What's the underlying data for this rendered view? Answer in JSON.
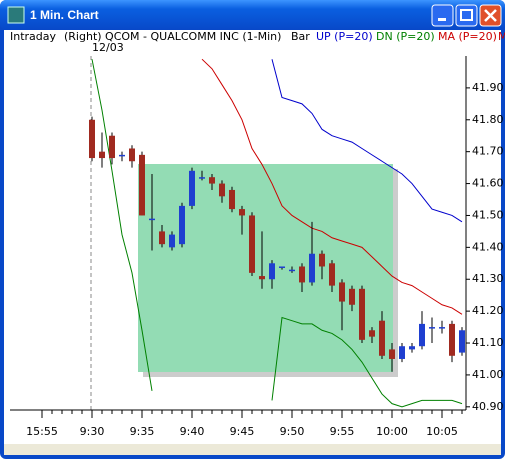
{
  "window": {
    "title": "1 Min. Chart"
  },
  "header": {
    "mode": "Intraday",
    "symbol": "(Right) QCOM - QUALCOMM INC (1-Min)",
    "style": "Bar",
    "more": "M"
  },
  "chart_data": {
    "type": "candlestick",
    "day_label": "12/03",
    "categories": [
      "15:55",
      null,
      null,
      null,
      null,
      "9:30",
      null,
      null,
      null,
      null,
      "9:35",
      null,
      null,
      null,
      null,
      "9:40",
      null,
      null,
      null,
      null,
      "9:45",
      null,
      null,
      null,
      null,
      "9:50",
      null,
      null,
      null,
      null,
      "9:55",
      null,
      null,
      null,
      null,
      "10:00",
      null,
      null,
      null,
      null,
      "10:05",
      null,
      null
    ],
    "open": [
      null,
      null,
      null,
      null,
      null,
      41.8,
      41.7,
      41.75,
      41.69,
      41.71,
      41.69,
      41.49,
      41.45,
      41.4,
      41.41,
      41.53,
      41.62,
      41.62,
      41.6,
      41.58,
      41.52,
      41.5,
      41.31,
      41.3,
      41.34,
      41.33,
      41.34,
      41.29,
      41.38,
      41.35,
      41.29,
      41.27,
      41.27,
      41.14,
      41.17,
      41.08,
      41.05,
      41.08,
      41.09,
      41.15,
      41.15,
      41.16,
      41.07
    ],
    "high": [
      null,
      null,
      null,
      null,
      null,
      41.81,
      41.76,
      41.76,
      41.7,
      41.72,
      41.7,
      41.63,
      41.47,
      41.45,
      41.54,
      41.65,
      41.64,
      41.63,
      41.61,
      41.59,
      41.53,
      41.51,
      41.45,
      41.36,
      41.34,
      41.34,
      41.35,
      41.48,
      41.39,
      41.36,
      41.3,
      41.28,
      41.28,
      41.15,
      41.2,
      41.1,
      41.1,
      41.1,
      41.2,
      41.18,
      41.17,
      41.17,
      41.15
    ],
    "low": [
      null,
      null,
      null,
      null,
      null,
      41.67,
      41.65,
      41.66,
      41.67,
      41.65,
      41.5,
      41.39,
      41.4,
      41.39,
      41.4,
      41.52,
      41.61,
      41.58,
      41.54,
      41.51,
      41.44,
      41.31,
      41.27,
      41.27,
      41.33,
      41.32,
      41.26,
      41.28,
      41.3,
      41.26,
      41.14,
      41.2,
      41.1,
      41.1,
      41.05,
      41.01,
      41.04,
      41.07,
      41.08,
      41.1,
      41.13,
      41.04,
      41.06
    ],
    "close": [
      null,
      null,
      null,
      null,
      null,
      41.68,
      41.68,
      41.68,
      41.69,
      41.67,
      41.5,
      41.49,
      41.41,
      41.44,
      41.53,
      41.64,
      41.62,
      41.6,
      41.56,
      41.52,
      41.5,
      41.32,
      41.3,
      41.35,
      41.34,
      41.33,
      41.29,
      41.38,
      41.34,
      41.28,
      41.23,
      41.22,
      41.11,
      41.12,
      41.06,
      41.05,
      41.09,
      41.09,
      41.16,
      41.15,
      41.15,
      41.06,
      41.14
    ],
    "up_color": "#1f3fd0",
    "down_color": "#a02a20",
    "series": [
      {
        "name": "UP (P=20)",
        "color": "#0000cc",
        "values": [
          null,
          null,
          null,
          null,
          null,
          null,
          null,
          null,
          null,
          null,
          null,
          null,
          null,
          null,
          null,
          null,
          null,
          null,
          null,
          null,
          null,
          null,
          null,
          41.99,
          41.87,
          41.86,
          41.85,
          41.82,
          41.77,
          41.75,
          41.74,
          41.73,
          41.71,
          41.69,
          41.67,
          41.65,
          41.63,
          41.6,
          41.56,
          41.52,
          41.51,
          41.5,
          41.48
        ]
      },
      {
        "name": "DN (P=20)",
        "color": "#008000",
        "values": [
          null,
          null,
          null,
          null,
          null,
          41.99,
          41.83,
          41.64,
          41.44,
          41.32,
          41.14,
          40.95,
          null,
          null,
          null,
          null,
          null,
          null,
          null,
          null,
          null,
          null,
          null,
          40.92,
          41.18,
          41.17,
          41.16,
          41.16,
          41.14,
          41.13,
          41.11,
          41.08,
          41.04,
          40.99,
          40.94,
          40.91,
          40.9,
          40.91,
          40.92,
          40.92,
          40.92,
          40.92,
          40.91
        ]
      },
      {
        "name": "MA (P=20)",
        "color": "#cc0000",
        "values": [
          null,
          null,
          null,
          null,
          null,
          null,
          null,
          null,
          null,
          null,
          null,
          null,
          null,
          null,
          null,
          null,
          41.99,
          41.96,
          41.91,
          41.86,
          41.8,
          41.71,
          41.66,
          41.6,
          41.53,
          41.5,
          41.48,
          41.46,
          41.45,
          41.43,
          41.42,
          41.41,
          41.4,
          41.37,
          41.34,
          41.31,
          41.29,
          41.28,
          41.26,
          41.24,
          41.22,
          41.21,
          41.19
        ]
      }
    ],
    "ylim": [
      40.89,
      42.0
    ],
    "yticks": [
      {
        "value": 40.9,
        "label": "40.90"
      },
      {
        "value": 41.0,
        "label": "41.00"
      },
      {
        "value": 41.1,
        "label": "41.10"
      },
      {
        "value": 41.2,
        "label": "41.20"
      },
      {
        "value": 41.3,
        "label": "41.30"
      },
      {
        "value": 41.4,
        "label": "41.40"
      },
      {
        "value": 41.5,
        "label": "41.50"
      },
      {
        "value": 41.6,
        "label": "41.60"
      },
      {
        "value": 41.7,
        "label": "41.70"
      },
      {
        "value": 41.8,
        "label": "41.80"
      },
      {
        "value": 41.9,
        "label": "41.90"
      }
    ],
    "grid": false
  }
}
